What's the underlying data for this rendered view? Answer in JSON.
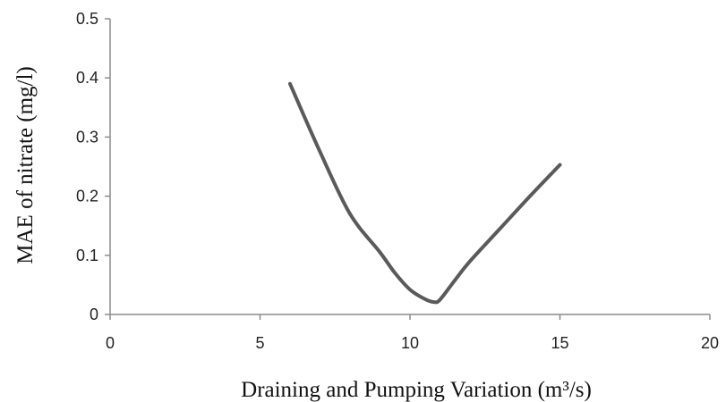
{
  "chart_data": {
    "type": "line",
    "title": "",
    "xlabel": "Draining and Pumping Variation (m³/s)",
    "ylabel": "MAE of nitrate (mg/l)",
    "xlim": [
      0,
      20
    ],
    "ylim": [
      0,
      0.5
    ],
    "xticks": [
      0,
      5,
      10,
      15,
      20
    ],
    "yticks": [
      0,
      0.1,
      0.2,
      0.3,
      0.4,
      0.5
    ],
    "xtick_labels": [
      "0",
      "5",
      "10",
      "15",
      "20"
    ],
    "ytick_labels": [
      "0",
      "0.1",
      "0.2",
      "0.3",
      "0.4",
      "0.5"
    ],
    "grid": false,
    "legend": "none",
    "line_color": "#5a5a5a",
    "axis_color": "#8c8c8c",
    "series": [
      {
        "x": [
          6,
          7,
          8,
          9,
          9.5,
          10,
          10.5,
          10.8,
          11,
          11.5,
          12,
          13,
          14,
          15
        ],
        "y": [
          0.39,
          0.275,
          0.17,
          0.105,
          0.07,
          0.042,
          0.026,
          0.021,
          0.025,
          0.058,
          0.09,
          0.145,
          0.2,
          0.253
        ]
      }
    ]
  }
}
